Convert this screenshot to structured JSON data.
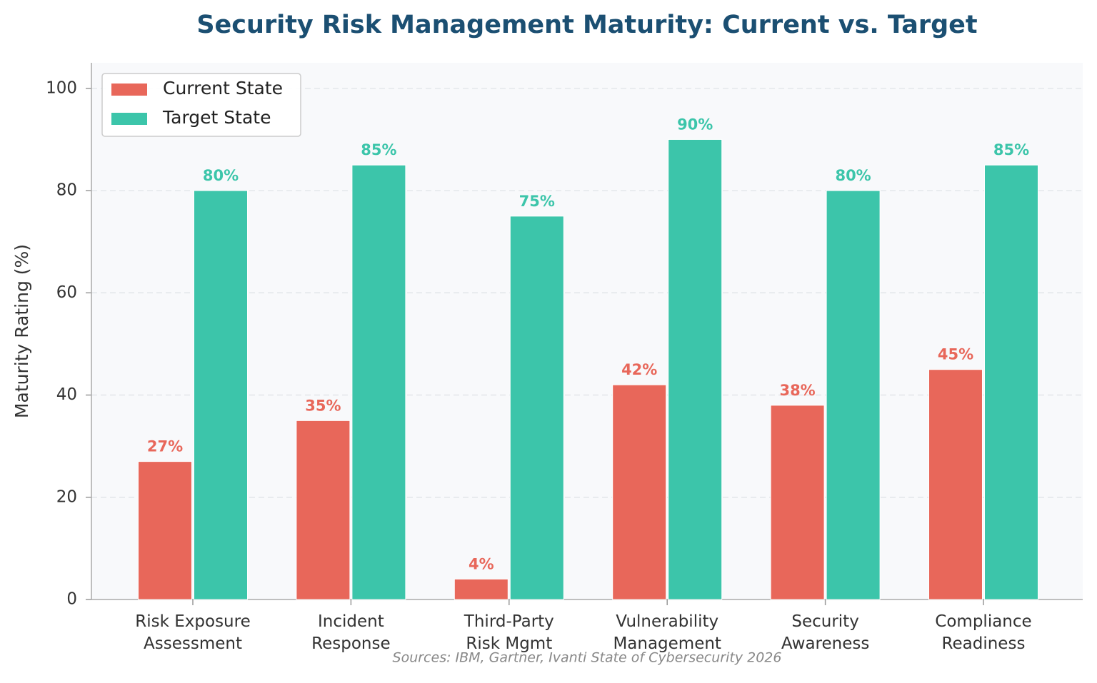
{
  "chart_data": {
    "type": "bar",
    "title": "Security Risk Management Maturity: Current vs. Target",
    "y_label": "Maturity Rating (%)",
    "note": "Sources: IBM, Gartner, Ivanti State of Cybersecurity 2026",
    "categories": [
      "Risk Exposure\nAssessment",
      "Incident\nResponse",
      "Third-Party\nRisk Mgmt",
      "Vulnerability\nManagement",
      "Security\nAwareness",
      "Compliance\nReadiness"
    ],
    "series": [
      {
        "name": "Current State",
        "color": "#e8675a",
        "values": [
          27,
          35,
          4,
          42,
          38,
          45
        ],
        "value_labels": [
          "27%",
          "35%",
          "4%",
          "42%",
          "38%",
          "45%"
        ]
      },
      {
        "name": "Target State",
        "color": "#3cc5aa",
        "values": [
          80,
          85,
          75,
          90,
          80,
          85
        ],
        "value_labels": [
          "80%",
          "85%",
          "75%",
          "90%",
          "80%",
          "85%"
        ]
      }
    ],
    "ylim": [
      0,
      105
    ],
    "yticks": [
      0,
      20,
      40,
      60,
      80,
      100
    ],
    "grid": true,
    "legend": "upper left"
  }
}
